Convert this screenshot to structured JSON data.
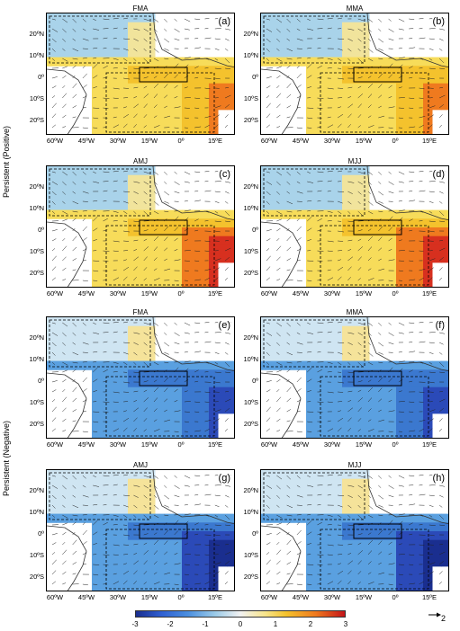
{
  "row_labels": [
    "Persistent (Positive)",
    "Persistent (Negative)"
  ],
  "panels": [
    {
      "season": "FMA",
      "label": "(a)",
      "anomaly": "positive"
    },
    {
      "season": "MMA",
      "label": "(b)",
      "anomaly": "positive"
    },
    {
      "season": "AMJ",
      "label": "(c)",
      "anomaly": "positive_strong"
    },
    {
      "season": "MJJ",
      "label": "(d)",
      "anomaly": "positive_strong"
    },
    {
      "season": "FMA",
      "label": "(e)",
      "anomaly": "negative"
    },
    {
      "season": "MMA",
      "label": "(f)",
      "anomaly": "negative"
    },
    {
      "season": "AMJ",
      "label": "(g)",
      "anomaly": "negative_strong"
    },
    {
      "season": "MJJ",
      "label": "(h)",
      "anomaly": "negative_strong"
    }
  ],
  "lat_ticks": [
    "20ºN",
    "10ºN",
    "0º",
    "10ºS",
    "20ºS"
  ],
  "lon_ticks": [
    "60ºW",
    "45ºW",
    "30ºW",
    "15ºW",
    "0º",
    "15ºE"
  ],
  "colorbar": {
    "ticks": [
      "-3",
      "-2",
      "-1",
      "0",
      "1",
      "2",
      "3"
    ],
    "colors": [
      "#1a2e8f",
      "#4b8fdf",
      "#f2f2f2",
      "#f4c22d",
      "#c4151a"
    ]
  },
  "reference_vector": {
    "label": "2"
  }
}
